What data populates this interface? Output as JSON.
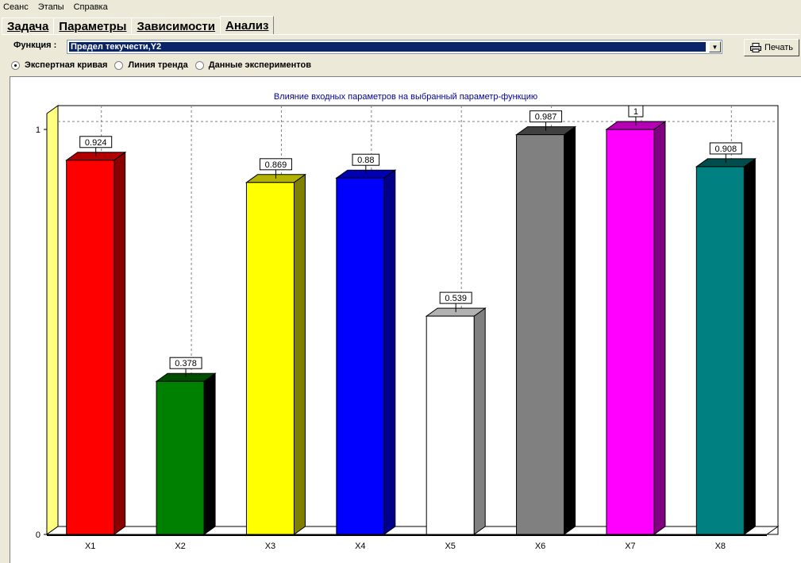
{
  "menu": {
    "items": [
      "Сеанс",
      "Этапы",
      "Справка"
    ]
  },
  "tabs": [
    {
      "label": "Задача",
      "active": false
    },
    {
      "label": "Параметры",
      "active": false
    },
    {
      "label": "Зависимости",
      "active": false
    },
    {
      "label": "Анализ",
      "active": true
    }
  ],
  "function_selector": {
    "label": "Функция :",
    "value": "Предел текучести,Y2"
  },
  "print_button": {
    "label": "Печать"
  },
  "modes": [
    {
      "label": "Экспертная кривая",
      "checked": true
    },
    {
      "label": "Линия тренда",
      "checked": false
    },
    {
      "label": "Данные экспериментов",
      "checked": false
    }
  ],
  "chart_data": {
    "type": "bar",
    "title": "Влияние входных параметров на  выбранный параметр-функцию",
    "categories": [
      "X1",
      "X2",
      "X3",
      "X4",
      "X5",
      "X6",
      "X7",
      "X8"
    ],
    "values": [
      0.924,
      0.378,
      0.869,
      0.88,
      0.539,
      0.987,
      1,
      0.908
    ],
    "value_labels": [
      "0.924",
      "0.378",
      "0.869",
      "0.88",
      "0.539",
      "0.987",
      "1",
      "0.908"
    ],
    "colors": [
      "#ff0000",
      "#008000",
      "#ffff00",
      "#0000ff",
      "#ffffff",
      "#808080",
      "#ff00ff",
      "#008080"
    ],
    "side_colors": [
      "#8b0000",
      "#000000",
      "#808000",
      "#00008b",
      "#808080",
      "#000000",
      "#800080",
      "#000000"
    ],
    "top_colors": [
      "#b20000",
      "#004d00",
      "#b2b200",
      "#0000b2",
      "#b2b2b2",
      "#404040",
      "#b200b2",
      "#004d4d"
    ],
    "yticks": [
      "0",
      "1"
    ],
    "ylim": [
      0,
      1
    ],
    "grid": true,
    "back_wall_color": "#ffff80"
  }
}
